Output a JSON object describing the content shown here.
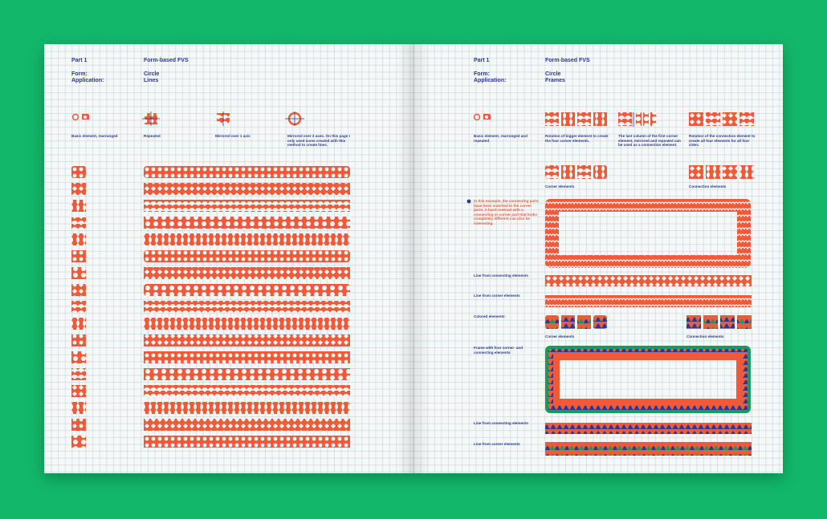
{
  "colors": {
    "background": "#12b76a",
    "paper": "#f6f8f7",
    "coral": "#ef5b3a",
    "blue": "#2b3a8f",
    "green": "#1a9a5a",
    "grid": "#b9cdd2"
  },
  "left": {
    "part": "Part 1",
    "title": "Form-based FVS",
    "form_label": "Form:",
    "application_label": "Application:",
    "form_value": "Circle",
    "application_value": "Lines",
    "captions": [
      "Basic element, rearranged",
      "Repeated",
      "Mirrored over 1 axis",
      "Mirrored over 2 axes. On this page I only used icons created with this method to create lines."
    ]
  },
  "right": {
    "part": "Part 1",
    "title": "Form-based FVS",
    "form_label": "Form:",
    "application_label": "Application:",
    "form_value": "Circle",
    "application_value": "Frames",
    "captions": [
      "Basic element, rearranged and repeated",
      "Rotation of bigger element to create the four corner elements.",
      "The last column of the first corner element, mirrored and repeated can be used as a connection element.",
      "Rotation of the connection element to create all four elements for all four sides."
    ],
    "corner_elements": "Corner elements",
    "connection_elements": "Connection elements",
    "note": "In this example, the connecting parts have been matched to the corner parts. A hard contrast with a connecting or corner part that looks completely different can also be interesting.",
    "line_connecting": "Line from connecting elements",
    "line_corner": "Line from corner elements",
    "colored": "Colored elements",
    "corner_elements_2": "Corner elements",
    "connection_elements_2": "Connection elements",
    "frame_label": "Frame with four corner- and connecting elements",
    "line_connecting_2": "Line from connecting elements",
    "line_corner_2": "Line from corner elements"
  }
}
